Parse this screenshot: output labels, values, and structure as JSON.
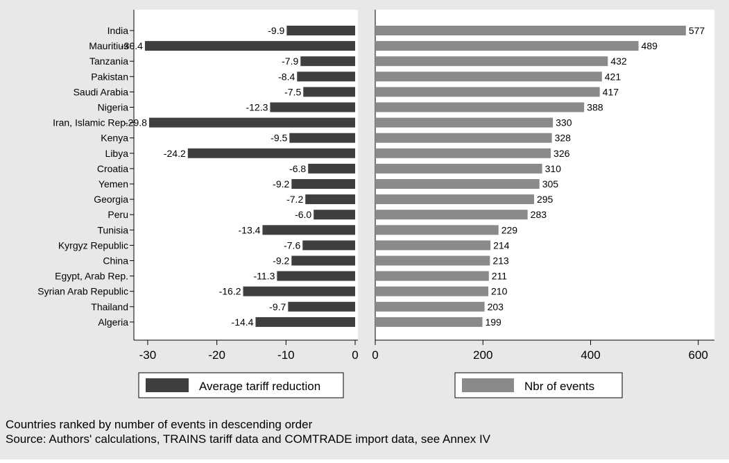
{
  "chart_data": {
    "type": "bar",
    "orientation": "horizontal",
    "categories": [
      "India",
      "Mauritius",
      "Tanzania",
      "Pakistan",
      "Saudi Arabia",
      "Nigeria",
      "Iran, Islamic Rep.",
      "Kenya",
      "Libya",
      "Croatia",
      "Yemen",
      "Georgia",
      "Peru",
      "Tunisia",
      "Kyrgyz Republic",
      "China",
      "Egypt, Arab Rep.",
      "Syrian Arab Republic",
      "Thailand",
      "Algeria"
    ],
    "panels": [
      {
        "series_name": "Average tariff reduction",
        "values": [
          -9.9,
          -30.4,
          -7.9,
          -8.4,
          -7.5,
          -12.3,
          -29.8,
          -9.5,
          -24.2,
          -6.8,
          -9.2,
          -7.2,
          -6.0,
          -13.4,
          -7.6,
          -9.2,
          -11.3,
          -16.2,
          -9.7,
          -14.4
        ],
        "value_labels": [
          "-9.9",
          "-30.4",
          "-7.9",
          "-8.4",
          "-7.5",
          "-12.3",
          "-29.8",
          "-9.5",
          "-24.2",
          "-6.8",
          "-9.2",
          "-7.2",
          "-6.0",
          "-13.4",
          "-7.6",
          "-9.2",
          "-11.3",
          "-16.2",
          "-9.7",
          "-14.4"
        ],
        "xlim": [
          -32,
          0.4
        ],
        "xticks": [
          -30,
          -20,
          -10,
          0
        ],
        "xtick_labels": [
          "-30",
          "-20",
          "-10",
          "0"
        ],
        "color": "#3f3f3f"
      },
      {
        "series_name": "Nbr of events",
        "values": [
          577,
          489,
          432,
          421,
          417,
          388,
          330,
          328,
          326,
          310,
          305,
          295,
          283,
          229,
          214,
          213,
          211,
          210,
          203,
          199
        ],
        "value_labels": [
          "577",
          "489",
          "432",
          "421",
          "417",
          "388",
          "330",
          "328",
          "326",
          "310",
          "305",
          "295",
          "283",
          "229",
          "214",
          "213",
          "211",
          "210",
          "203",
          "199"
        ],
        "xlim": [
          0,
          630
        ],
        "xticks": [
          0,
          200,
          400,
          600
        ],
        "xtick_labels": [
          "0",
          "200",
          "400",
          "600"
        ],
        "color": "#8a8a8a"
      }
    ],
    "grid": false,
    "legend_placement": "bottom"
  },
  "notes": [
    "Countries ranked by number of events in descending order",
    "Source: Authors' calculations, TRAINS tariff data and COMTRADE import data, see Annex IV"
  ],
  "colors": {
    "background": "#e8e8e8",
    "plot_background": "#ffffff",
    "frame": "#000000"
  }
}
